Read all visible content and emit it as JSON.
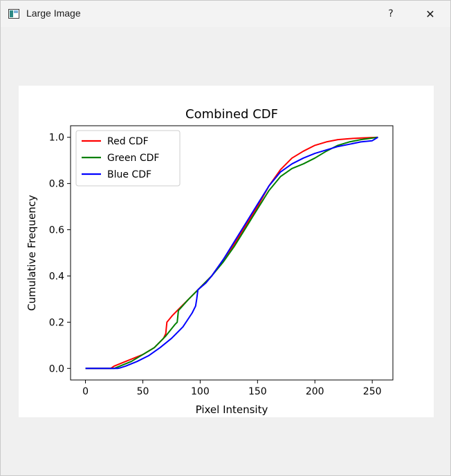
{
  "window": {
    "title": "Large Image",
    "help_label": "?",
    "close_label": "✕",
    "icon": "app-window-icon"
  },
  "chart_data": {
    "type": "line",
    "title": "Combined CDF",
    "xlabel": "Pixel Intensity",
    "ylabel": "Cumulative Frequency",
    "xlim": [
      -13,
      268
    ],
    "ylim": [
      -0.05,
      1.05
    ],
    "xticks": [
      "0",
      "50",
      "100",
      "150",
      "200",
      "250"
    ],
    "yticks": [
      "0.0",
      "0.2",
      "0.4",
      "0.6",
      "0.8",
      "1.0"
    ],
    "grid": false,
    "legend": "upper-left",
    "series": [
      {
        "name": "Red CDF",
        "color": "#ff0000",
        "points": [
          [
            0,
            0
          ],
          [
            22,
            0
          ],
          [
            25,
            0.01
          ],
          [
            35,
            0.03
          ],
          [
            50,
            0.06
          ],
          [
            60,
            0.09
          ],
          [
            68,
            0.13
          ],
          [
            70,
            0.15
          ],
          [
            71,
            0.2
          ],
          [
            76,
            0.23
          ],
          [
            80,
            0.25
          ],
          [
            90,
            0.3
          ],
          [
            100,
            0.35
          ],
          [
            110,
            0.4
          ],
          [
            120,
            0.47
          ],
          [
            130,
            0.54
          ],
          [
            140,
            0.62
          ],
          [
            150,
            0.7
          ],
          [
            160,
            0.79
          ],
          [
            170,
            0.86
          ],
          [
            180,
            0.91
          ],
          [
            190,
            0.94
          ],
          [
            200,
            0.965
          ],
          [
            210,
            0.98
          ],
          [
            220,
            0.99
          ],
          [
            230,
            0.994
          ],
          [
            240,
            0.997
          ],
          [
            255,
            1.0
          ]
        ]
      },
      {
        "name": "Green CDF",
        "color": "#008000",
        "points": [
          [
            0,
            0
          ],
          [
            25,
            0
          ],
          [
            30,
            0.01
          ],
          [
            40,
            0.03
          ],
          [
            50,
            0.06
          ],
          [
            60,
            0.09
          ],
          [
            70,
            0.14
          ],
          [
            78,
            0.19
          ],
          [
            80,
            0.2
          ],
          [
            81,
            0.25
          ],
          [
            90,
            0.3
          ],
          [
            100,
            0.35
          ],
          [
            110,
            0.4
          ],
          [
            120,
            0.46
          ],
          [
            130,
            0.53
          ],
          [
            140,
            0.61
          ],
          [
            150,
            0.69
          ],
          [
            160,
            0.77
          ],
          [
            170,
            0.83
          ],
          [
            180,
            0.865
          ],
          [
            190,
            0.885
          ],
          [
            200,
            0.91
          ],
          [
            210,
            0.94
          ],
          [
            220,
            0.965
          ],
          [
            230,
            0.98
          ],
          [
            240,
            0.99
          ],
          [
            255,
            1.0
          ]
        ]
      },
      {
        "name": "Blue CDF",
        "color": "#0000ff",
        "points": [
          [
            0,
            0
          ],
          [
            28,
            0
          ],
          [
            30,
            0.002
          ],
          [
            35,
            0.01
          ],
          [
            45,
            0.03
          ],
          [
            55,
            0.055
          ],
          [
            65,
            0.09
          ],
          [
            75,
            0.13
          ],
          [
            85,
            0.18
          ],
          [
            93,
            0.24
          ],
          [
            96,
            0.27
          ],
          [
            97,
            0.3
          ],
          [
            98,
            0.34
          ],
          [
            105,
            0.37
          ],
          [
            110,
            0.4
          ],
          [
            120,
            0.47
          ],
          [
            130,
            0.55
          ],
          [
            140,
            0.63
          ],
          [
            150,
            0.71
          ],
          [
            160,
            0.79
          ],
          [
            170,
            0.85
          ],
          [
            180,
            0.885
          ],
          [
            190,
            0.91
          ],
          [
            200,
            0.93
          ],
          [
            210,
            0.945
          ],
          [
            220,
            0.96
          ],
          [
            230,
            0.97
          ],
          [
            240,
            0.98
          ],
          [
            250,
            0.985
          ],
          [
            255,
            1.0
          ]
        ]
      }
    ]
  }
}
